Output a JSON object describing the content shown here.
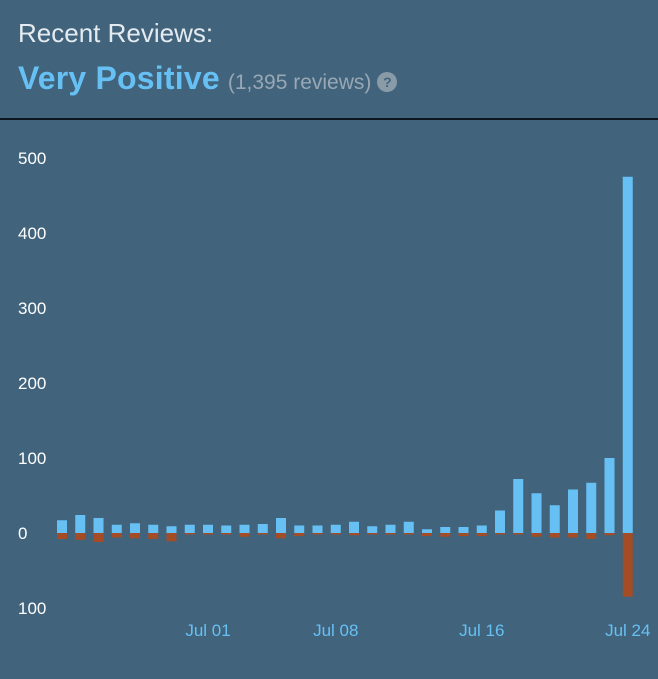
{
  "header": {
    "title": "Recent Reviews:",
    "rating": "Very Positive",
    "count": "(1,395 reviews)",
    "help_icon": "question-mark-icon"
  },
  "colors": {
    "background": "#41637c",
    "positive": "#66c0f4",
    "negative": "#a34c25",
    "rating_text": "#66c0f4"
  },
  "chart_data": {
    "type": "bar",
    "title": "",
    "xlabel": "",
    "ylabel": "",
    "ylim": [
      -100,
      500
    ],
    "yticks": [
      {
        "value": 500,
        "label": "500"
      },
      {
        "value": 400,
        "label": "400"
      },
      {
        "value": 300,
        "label": "300"
      },
      {
        "value": 200,
        "label": "200"
      },
      {
        "value": 100,
        "label": "100"
      },
      {
        "value": 0,
        "label": "0"
      },
      {
        "value": -100,
        "label": "100"
      }
    ],
    "xticks": [
      {
        "index": 8,
        "label": "Jul 01"
      },
      {
        "index": 15,
        "label": "Jul 08"
      },
      {
        "index": 23,
        "label": "Jul 16"
      },
      {
        "index": 31,
        "label": "Jul 24"
      }
    ],
    "series": [
      {
        "values": [
          17,
          24,
          20,
          11,
          13,
          11,
          9,
          11,
          11,
          10,
          11,
          12,
          20,
          10,
          10,
          11,
          15,
          9,
          11,
          15,
          5,
          8,
          8,
          10,
          30,
          72,
          53,
          37,
          58,
          67,
          100,
          475
        ]
      },
      {
        "values": [
          -8,
          -9,
          -12,
          -6,
          -7,
          -8,
          -11,
          -2,
          -2,
          -2,
          -5,
          -2,
          -7,
          -4,
          -2,
          -2,
          -3,
          -2,
          -2,
          -2,
          -4,
          -5,
          -4,
          -4,
          -2,
          -2,
          -5,
          -6,
          -6,
          -8,
          -3,
          -85
        ]
      }
    ]
  }
}
